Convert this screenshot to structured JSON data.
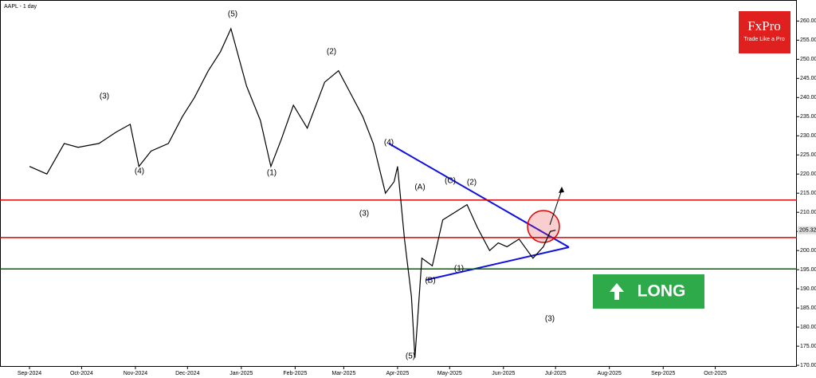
{
  "chart_data": {
    "type": "line",
    "title": "AAPL - 1 day",
    "x": [
      0,
      10,
      20,
      28,
      40,
      50,
      58,
      63,
      70,
      80,
      88,
      95,
      103,
      110,
      116,
      125,
      133,
      139,
      145,
      152,
      160,
      170,
      178,
      185,
      192,
      198,
      205,
      210,
      212,
      216,
      220,
      222,
      226,
      232,
      238,
      245,
      252,
      258,
      265,
      270,
      275,
      282,
      290,
      296,
      300,
      303
    ],
    "series": [
      {
        "name": "AAPL",
        "color": "#000000",
        "values": [
          222,
          220,
          228,
          227,
          228,
          231,
          233,
          222,
          226,
          228,
          235,
          240,
          247,
          252,
          258,
          243,
          234,
          222,
          229,
          238,
          232,
          244,
          247,
          241,
          235,
          228,
          215,
          218,
          222,
          203,
          188,
          172,
          198,
          196,
          208,
          210,
          212,
          206,
          200,
          202,
          201,
          203,
          198,
          201,
          205,
          205.32
        ]
      }
    ],
    "xlim": [
      -17,
      442
    ],
    "xticks": [
      {
        "value": 0,
        "label": "Sep-2024"
      },
      {
        "value": 30,
        "label": "Oct-2024"
      },
      {
        "value": 61,
        "label": "Nov-2024"
      },
      {
        "value": 91,
        "label": "Dec-2024"
      },
      {
        "value": 122,
        "label": "Jan-2025"
      },
      {
        "value": 153,
        "label": "Feb-2025"
      },
      {
        "value": 181,
        "label": "Mar-2025"
      },
      {
        "value": 212,
        "label": "Apr-2025"
      },
      {
        "value": 242,
        "label": "May-2025"
      },
      {
        "value": 273,
        "label": "Jun-2025"
      },
      {
        "value": 303,
        "label": "Jul-2025"
      },
      {
        "value": 334,
        "label": "Aug-2025"
      },
      {
        "value": 365,
        "label": "Sep-2025"
      },
      {
        "value": 395,
        "label": "Oct-2025"
      }
    ],
    "ylim": [
      169.6,
      265.5
    ],
    "yticks": [
      {
        "value": 170,
        "label": "170.00"
      },
      {
        "value": 175,
        "label": "175.00"
      },
      {
        "value": 180,
        "label": "180.00"
      },
      {
        "value": 185,
        "label": "185.00"
      },
      {
        "value": 190,
        "label": "190.00"
      },
      {
        "value": 195,
        "label": "195.00"
      },
      {
        "value": 200,
        "label": "200.00"
      },
      {
        "value": 205,
        "label": "205.00"
      },
      {
        "value": 210,
        "label": "210.00"
      },
      {
        "value": 215,
        "label": "215.00"
      },
      {
        "value": 220,
        "label": "220.00"
      },
      {
        "value": 225,
        "label": "225.00"
      },
      {
        "value": 230,
        "label": "230.00"
      },
      {
        "value": 235,
        "label": "235.00"
      },
      {
        "value": 240,
        "label": "240.00"
      },
      {
        "value": 245,
        "label": "245.00"
      },
      {
        "value": 250,
        "label": "250.00"
      },
      {
        "value": 255,
        "label": "255.00"
      },
      {
        "value": 260,
        "label": "260.00"
      }
    ],
    "last_price": {
      "value": 205.32,
      "label": "205.32"
    },
    "levels": [
      {
        "value": 213.2,
        "color": "#e00000"
      },
      {
        "value": 203.4,
        "color": "#e00000"
      },
      {
        "value": 195.2,
        "color": "#006400"
      }
    ],
    "wave_labels": [
      "(5)",
      "(3)",
      "(4)",
      "(1)",
      "(2)",
      "(3)",
      "(4)",
      "(5)",
      "(A)",
      "(B)",
      "(C)",
      "(1)",
      "(2)",
      "(3)"
    ],
    "signal": "LONG",
    "logo": {
      "name": "FxPro",
      "tagline": "Trade Like a Pro"
    }
  }
}
